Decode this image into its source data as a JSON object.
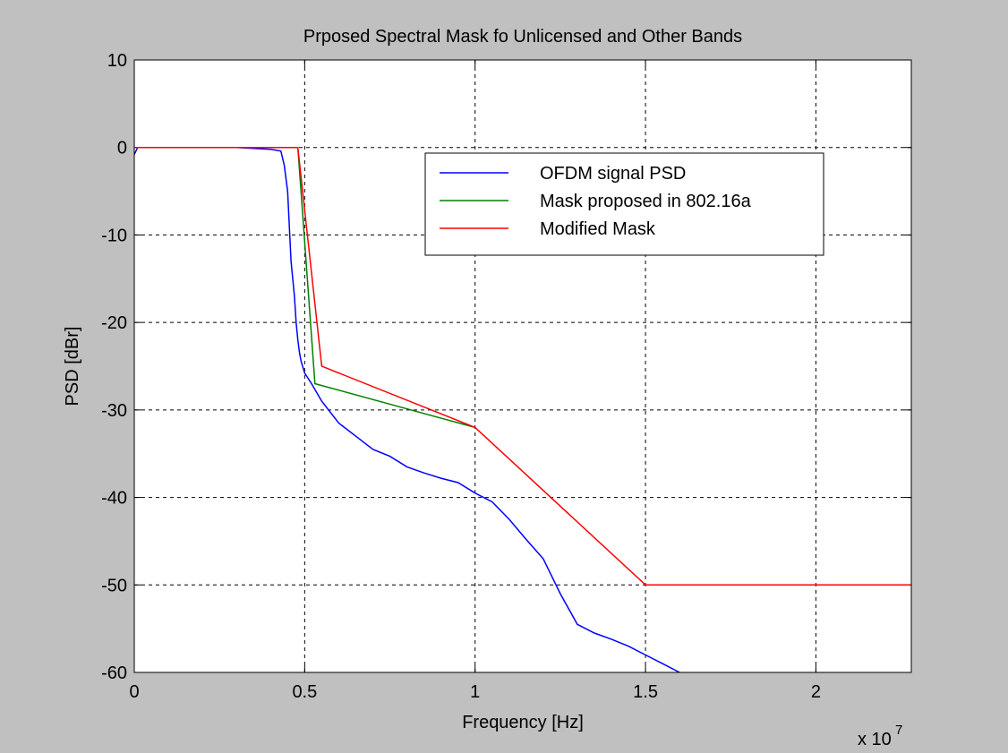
{
  "chart_data": {
    "type": "line",
    "title": "Prposed Spectral Mask fo Unlicensed and Other Bands",
    "xlabel": "Frequency [Hz]",
    "ylabel": "PSD [dBr]",
    "x_multiplier_label": "x 10",
    "x_multiplier_exponent": "7",
    "xlim": [
      0,
      22800000
    ],
    "ylim": [
      -60,
      10
    ],
    "x_ticks": [
      0,
      5000000,
      10000000,
      15000000,
      20000000
    ],
    "x_tick_labels": [
      "0",
      "0.5",
      "1",
      "1.5",
      "2"
    ],
    "y_ticks": [
      10,
      0,
      -10,
      -20,
      -30,
      -40,
      -50,
      -60
    ],
    "y_tick_labels": [
      "10",
      "0",
      "-10",
      "-20",
      "-30",
      "-40",
      "-50",
      "-60"
    ],
    "grid": true,
    "legend_position": "top-right",
    "series": [
      {
        "name": "OFDM signal PSD",
        "color": "#0000ff",
        "x": [
          0,
          100000,
          500000,
          1000000,
          2000000,
          3000000,
          4000000,
          4300000,
          4400000,
          4500000,
          4550000,
          4600000,
          4700000,
          4750000,
          4800000,
          4850000,
          4900000,
          5000000,
          5200000,
          5500000,
          6000000,
          6500000,
          7000000,
          7500000,
          8000000,
          8500000,
          9000000,
          9500000,
          10000000,
          10500000,
          11000000,
          11500000,
          12000000,
          12500000,
          13000000,
          13500000,
          14000000,
          14500000,
          15000000,
          15500000,
          16000000
        ],
        "y": [
          -0.8,
          0,
          0,
          0,
          0,
          0,
          -0.2,
          -0.4,
          -2,
          -5,
          -9,
          -13,
          -17,
          -20,
          -22,
          -23.5,
          -24.5,
          -25.8,
          -27,
          -29,
          -31.5,
          -33,
          -34.5,
          -35.3,
          -36.5,
          -37.2,
          -37.8,
          -38.3,
          -39.5,
          -40.5,
          -42.5,
          -44.8,
          -47,
          -51,
          -54.5,
          -55.5,
          -56.2,
          -57,
          -58,
          -59,
          -60
        ]
      },
      {
        "name": "Mask proposed in 802.16a",
        "color": "#008000",
        "x": [
          0,
          4800000,
          5300000,
          10000000
        ],
        "y": [
          0,
          0,
          -27,
          -32
        ]
      },
      {
        "name": "Modified Mask",
        "color": "#ff0000",
        "x": [
          0,
          4800000,
          5500000,
          10000000,
          15000000,
          22800000
        ],
        "y": [
          0,
          0,
          -25,
          -32,
          -50,
          -50
        ]
      }
    ]
  }
}
